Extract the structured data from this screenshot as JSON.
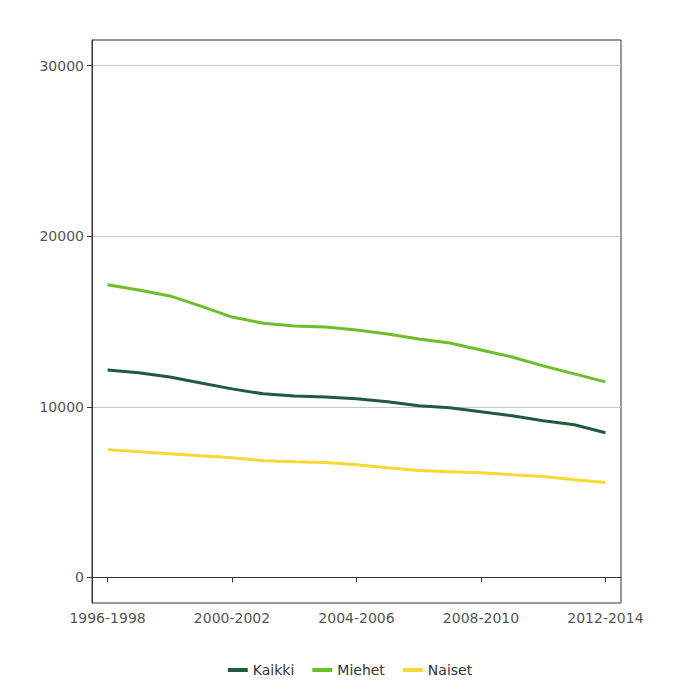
{
  "chart_data": {
    "type": "line",
    "categories": [
      "1996-1998",
      null,
      null,
      null,
      "2000-2002",
      null,
      null,
      null,
      "2004-2006",
      null,
      null,
      null,
      "2008-2010",
      null,
      null,
      null,
      "2012-2014"
    ],
    "series": [
      {
        "name": "Kaikki",
        "color": "#1f5b3c",
        "values": [
          12160,
          11990,
          11750,
          11400,
          11050,
          10760,
          10640,
          10580,
          10470,
          10290,
          10060,
          9940,
          9710,
          9470,
          9180,
          8950,
          8480
        ]
      },
      {
        "name": "Miehet",
        "color": "#6cbf2c",
        "values": [
          17150,
          16850,
          16500,
          15900,
          15260,
          14900,
          14740,
          14680,
          14500,
          14270,
          13980,
          13740,
          13330,
          12920,
          12400,
          11930,
          11460
        ]
      },
      {
        "name": "Naiset",
        "color": "#f6d935",
        "values": [
          7490,
          7370,
          7250,
          7130,
          7020,
          6840,
          6780,
          6730,
          6610,
          6430,
          6260,
          6200,
          6140,
          6020,
          5910,
          5730,
          5560
        ]
      }
    ],
    "ylim": [
      -1500,
      31500
    ],
    "yticks": [
      0,
      10000,
      20000,
      30000
    ],
    "grid": true,
    "legend": "bottom"
  }
}
